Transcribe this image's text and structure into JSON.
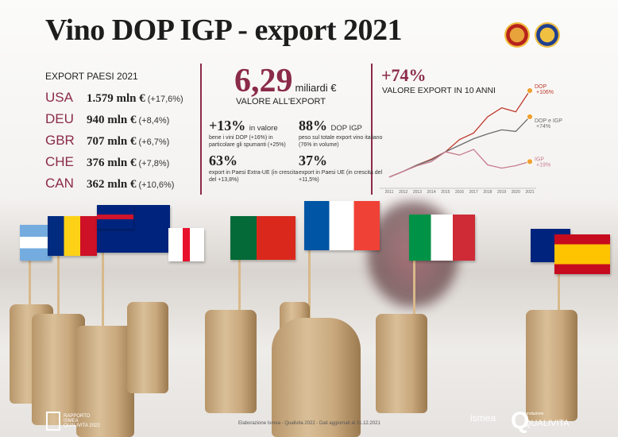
{
  "title": "Vino DOP IGP - export 2021",
  "seals": [
    "dop-seal-icon",
    "igp-seal-icon"
  ],
  "countries": {
    "heading": "EXPORT PAESI 2021",
    "rows": [
      {
        "code": "USA",
        "value": "1.579 mln €",
        "change": "(+17,6%)"
      },
      {
        "code": "DEU",
        "value": "940 mln €",
        "change": "(+8,4%)"
      },
      {
        "code": "GBR",
        "value": "707 mln €",
        "change": "(+6,7%)"
      },
      {
        "code": "CHE",
        "value": "376 mln €",
        "change": "(+7,8%)"
      },
      {
        "code": "CAN",
        "value": "362 mln €",
        "change": "(+10,6%)"
      }
    ]
  },
  "summary": {
    "value": "6,29",
    "unit": "miliardi €",
    "label": "VALORE ALL'EXPORT",
    "stats": [
      {
        "num": "+13%",
        "unit": "in valore",
        "desc": "bene i vini DOP (+16%) in particolare gli spumanti (+25%)"
      },
      {
        "num": "88%",
        "unit": "DOP IGP",
        "desc": "peso sul totale export vino italiano (76% in volume)"
      },
      {
        "num": "63%",
        "unit": "",
        "desc": "export in Paesi Extra-UE (in crescita del +13,8%)"
      },
      {
        "num": "37%",
        "unit": "",
        "desc": "export in Paesi UE (in crescita del +11,5%)"
      }
    ]
  },
  "chart_data": {
    "type": "line",
    "title": "+74%",
    "subtitle": "VALORE EXPORT IN 10 ANNI",
    "x": [
      "2011",
      "2012",
      "2013",
      "2014",
      "2015",
      "2016",
      "2017",
      "2018",
      "2019",
      "2020",
      "2021"
    ],
    "ylim": [
      95,
      210
    ],
    "grid": false,
    "series": [
      {
        "name": "DOP",
        "end_label": "+106%",
        "color": "#c0392b",
        "values": [
          100,
          107,
          115,
          122,
          131,
          146,
          154,
          174,
          185,
          180,
          206
        ]
      },
      {
        "name": "DOP e IGP",
        "end_label": "+74%",
        "color": "#6b6b6b",
        "values": [
          100,
          107,
          115,
          121,
          131,
          139,
          147,
          153,
          158,
          156,
          174
        ]
      },
      {
        "name": "IGP",
        "end_label": "+19%",
        "color": "#c77b8e",
        "values": [
          100,
          107,
          114,
          119,
          131,
          127,
          134,
          115,
          111,
          114,
          119
        ]
      }
    ]
  },
  "footer": {
    "report": "RAPPORTO ISMEA QUALIVITA 2022",
    "source": "Elaborazione Ismea - Qualivita 2022 - Dati aggiornati al 31.12.2021",
    "ismea": "ismea",
    "qualivita_small": "fondazione",
    "qualivita": "QUALIVITA"
  },
  "colors": {
    "accent": "#8b2a4a"
  }
}
